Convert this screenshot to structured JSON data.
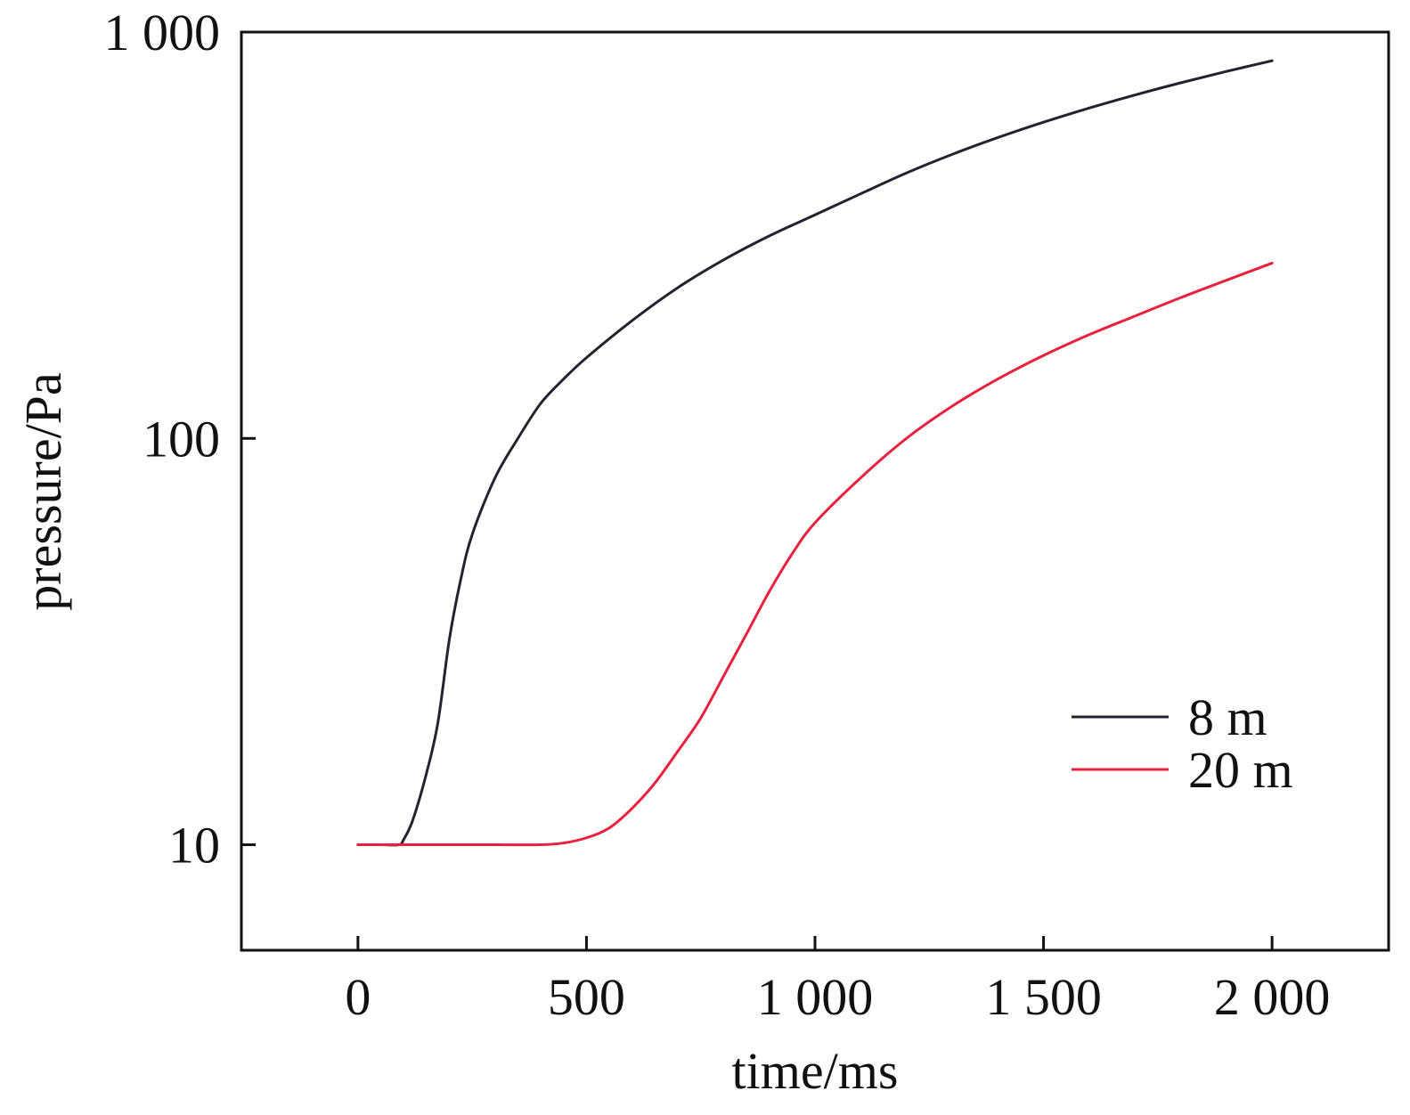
{
  "chart_data": {
    "type": "line",
    "title": "",
    "xlabel": "time/ms",
    "ylabel": "pressure/Pa",
    "xlim": [
      -255,
      2255
    ],
    "ylim": [
      5.5,
      1000
    ],
    "yscale": "log",
    "grid": false,
    "legend_position": "lower-right",
    "x_ticks": [
      {
        "value": 0,
        "label": "0"
      },
      {
        "value": 500,
        "label": "500"
      },
      {
        "value": 1000,
        "label": "1 000"
      },
      {
        "value": 1500,
        "label": "1 500"
      },
      {
        "value": 2000,
        "label": "2 000"
      }
    ],
    "y_ticks": [
      {
        "value": 10,
        "label": "10"
      },
      {
        "value": 100,
        "label": "100"
      },
      {
        "value": 1000,
        "label": "1 000"
      }
    ],
    "series": [
      {
        "name": "8 m",
        "color": "#23232f",
        "x": [
          0,
          50,
          90,
          100,
          120,
          150,
          175,
          200,
          225,
          250,
          300,
          350,
          400,
          450,
          500,
          600,
          700,
          800,
          900,
          1000,
          1100,
          1200,
          1300,
          1400,
          1500,
          1600,
          1700,
          1800,
          1900,
          2000
        ],
        "y": [
          10,
          10,
          10,
          10.3,
          11.5,
          15,
          20,
          32,
          45,
          58,
          80,
          100,
          122,
          140,
          158,
          195,
          235,
          275,
          315,
          355,
          400,
          450,
          500,
          550,
          600,
          650,
          700,
          750,
          800,
          850
        ]
      },
      {
        "name": "20 m",
        "color": "#e8213f",
        "x": [
          0,
          100,
          200,
          300,
          400,
          450,
          500,
          550,
          600,
          650,
          700,
          750,
          800,
          850,
          900,
          950,
          1000,
          1100,
          1200,
          1300,
          1400,
          1500,
          1600,
          1700,
          1800,
          1900,
          2000
        ],
        "y": [
          10,
          10,
          10,
          10,
          10,
          10.1,
          10.4,
          11,
          12.3,
          14.2,
          17,
          20.5,
          26,
          33,
          42,
          52,
          62,
          80,
          100,
          120,
          140,
          160,
          180,
          200,
          222,
          245,
          270
        ]
      }
    ]
  }
}
